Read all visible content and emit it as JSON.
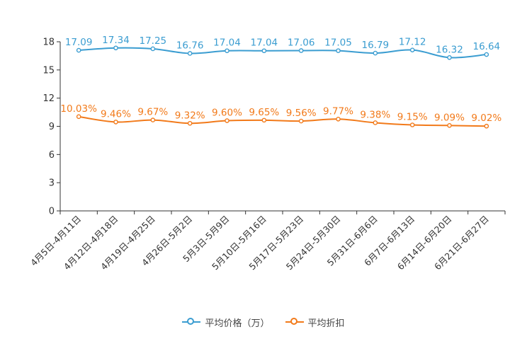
{
  "chart_data": {
    "type": "line",
    "categories": [
      "4月5日-4月11日",
      "4月12日-4月18日",
      "4月19日-4月25日",
      "4月26日-5月2日",
      "5月3日-5月9日",
      "5月10日-5月16日",
      "5月17日-5月23日",
      "5月24日-5月30日",
      "5月31日-6月6日",
      "6月7日-6月13日",
      "6月14日-6月20日",
      "6月21日-6月27日"
    ],
    "ylim": [
      0,
      18
    ],
    "yticks": [
      0,
      3,
      6,
      9,
      12,
      15,
      18
    ],
    "grid": false,
    "legend_position": "bottom-center",
    "series": [
      {
        "name": "平均价格（万）",
        "color": "#3b9dd1",
        "values": [
          17.09,
          17.34,
          17.25,
          16.76,
          17.04,
          17.04,
          17.06,
          17.05,
          16.79,
          17.12,
          16.32,
          16.64
        ],
        "labels": [
          "17.09",
          "17.34",
          "17.25",
          "16.76",
          "17.04",
          "17.04",
          "17.06",
          "17.05",
          "16.79",
          "17.12",
          "16.32",
          "16.64"
        ]
      },
      {
        "name": "平均折扣",
        "color": "#f27a1a",
        "values": [
          10.03,
          9.46,
          9.67,
          9.32,
          9.6,
          9.65,
          9.56,
          9.77,
          9.38,
          9.15,
          9.09,
          9.02
        ],
        "labels": [
          "10.03%",
          "9.46%",
          "9.67%",
          "9.32%",
          "9.60%",
          "9.65%",
          "9.56%",
          "9.77%",
          "9.38%",
          "9.15%",
          "9.09%",
          "9.02%"
        ]
      }
    ]
  }
}
